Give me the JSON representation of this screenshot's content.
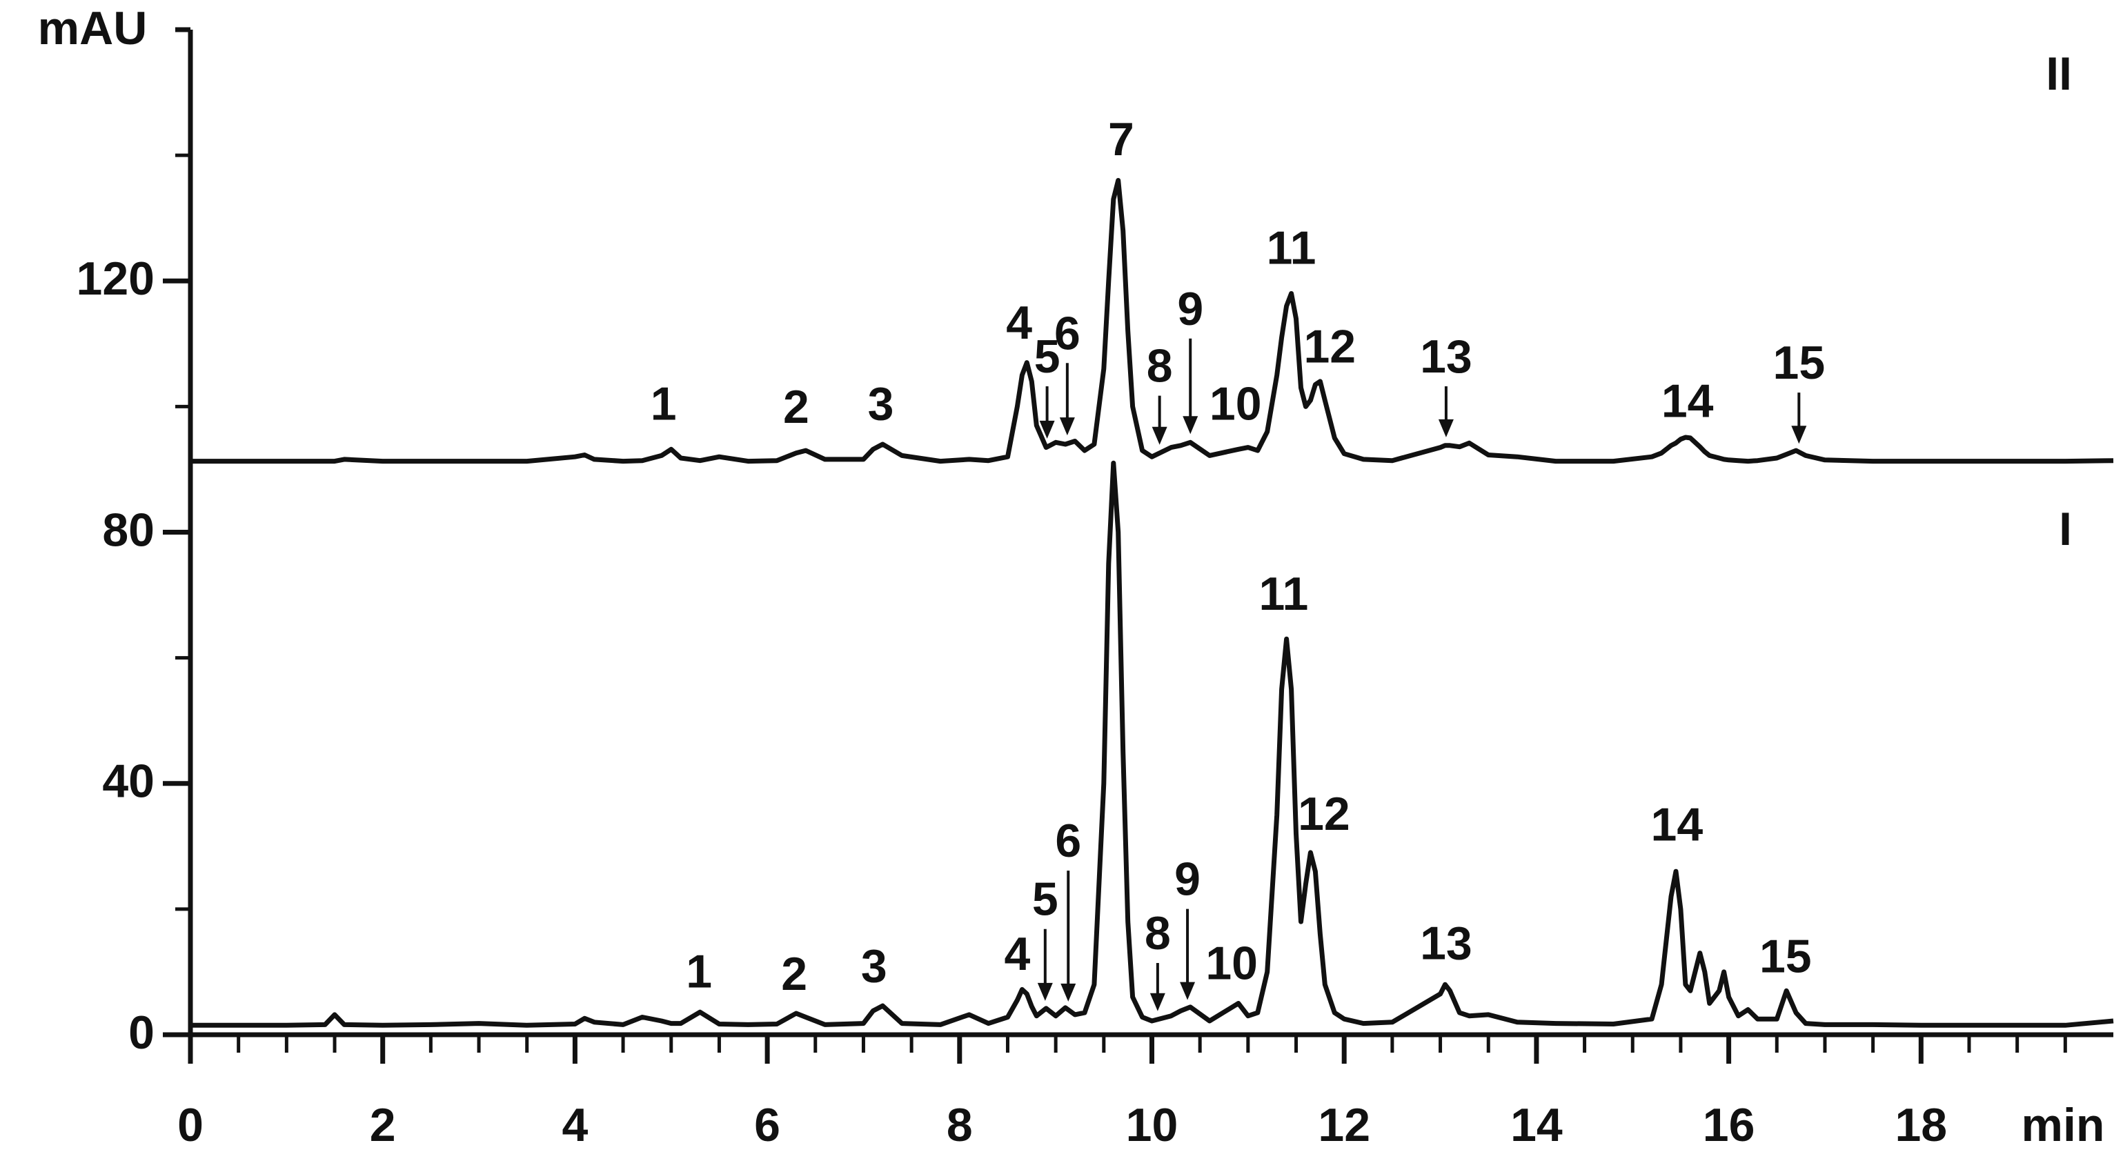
{
  "chart_data": {
    "type": "line",
    "xlabel": "min",
    "ylabel": "mAU",
    "xlim": [
      0,
      20
    ],
    "ylim": [
      0,
      160
    ],
    "xticks": [
      0,
      2,
      4,
      6,
      8,
      10,
      12,
      14,
      16,
      18
    ],
    "yticks": [
      0,
      40,
      80,
      120
    ],
    "color": "#111111",
    "x": [
      0,
      0.5,
      1,
      1.4,
      1.5,
      1.6,
      2,
      2.5,
      3,
      3.5,
      4,
      4.1,
      4.2,
      4.5,
      4.7,
      4.9,
      5.0,
      5.1,
      5.3,
      5.5,
      5.8,
      6.1,
      6.3,
      6.4,
      6.6,
      7.0,
      7.1,
      7.2,
      7.4,
      7.8,
      8.1,
      8.3,
      8.5,
      8.6,
      8.65,
      8.7,
      8.75,
      8.8,
      8.9,
      9.0,
      9.1,
      9.2,
      9.3,
      9.4,
      9.5,
      9.55,
      9.6,
      9.65,
      9.7,
      9.75,
      9.8,
      9.9,
      10.0,
      10.2,
      10.3,
      10.4,
      10.6,
      10.9,
      11.0,
      11.1,
      11.2,
      11.3,
      11.35,
      11.4,
      11.45,
      11.5,
      11.55,
      11.6,
      11.65,
      11.7,
      11.75,
      11.8,
      11.9,
      12.0,
      12.2,
      12.5,
      13.0,
      13.05,
      13.1,
      13.2,
      13.3,
      13.5,
      13.8,
      14.2,
      14.8,
      15.2,
      15.3,
      15.4,
      15.45,
      15.5,
      15.55,
      15.6,
      15.7,
      15.75,
      15.8,
      15.9,
      15.95,
      16.0,
      16.1,
      16.2,
      16.3,
      16.5,
      16.6,
      16.7,
      16.8,
      17.0,
      17.5,
      18,
      18.5,
      19,
      19.5,
      20
    ],
    "series": [
      {
        "name": "II",
        "values": [
          91.3,
          91.3,
          91.3,
          91.3,
          91.3,
          91.6,
          91.3,
          91.3,
          91.3,
          91.3,
          92.0,
          92.3,
          91.6,
          91.3,
          91.4,
          92.2,
          93.2,
          91.8,
          91.4,
          92.0,
          91.3,
          91.4,
          92.6,
          93.0,
          91.6,
          91.6,
          93.2,
          94.0,
          92.2,
          91.3,
          91.6,
          91.4,
          92.0,
          100,
          105,
          107,
          104,
          97,
          93.5,
          94.3,
          94.0,
          94.5,
          93,
          94,
          106,
          120,
          133,
          136,
          128,
          112,
          100,
          93,
          92,
          93.5,
          93.8,
          94.3,
          92.2,
          93.2,
          93.5,
          93,
          96,
          105,
          111,
          116,
          118,
          114,
          103,
          100,
          101,
          103.5,
          104,
          101,
          95,
          92.5,
          91.6,
          91.4,
          93.5,
          93.8,
          93.8,
          93.6,
          94.2,
          92.3,
          92.0,
          91.3,
          91.3,
          92.0,
          92.6,
          93.8,
          94.2,
          94.8,
          95.1,
          95.0,
          93.6,
          92.8,
          92.2,
          91.8,
          91.6,
          91.5,
          91.4,
          91.3,
          91.4,
          91.8,
          92.4,
          93.0,
          92.2,
          91.5,
          91.3,
          91.3,
          91.3,
          91.3,
          91.3,
          91.4
        ],
        "labels": [
          {
            "text": "1",
            "x": 4.92,
            "y": 99.9
          },
          {
            "text": "2",
            "x": 6.3,
            "y": 99.4
          },
          {
            "text": "3",
            "x": 7.18,
            "y": 99.9
          },
          {
            "text": "4",
            "x": 8.62,
            "y": 112.8
          },
          {
            "text": "5",
            "x": 8.91,
            "y": 107.4,
            "arrow": true
          },
          {
            "text": "6",
            "x": 9.12,
            "y": 111.1,
            "arrow": true
          },
          {
            "text": "7",
            "x": 9.68,
            "y": 142
          },
          {
            "text": "8",
            "x": 10.08,
            "y": 105.9,
            "arrow": true
          },
          {
            "text": "9",
            "x": 10.4,
            "y": 115,
            "arrow": true
          },
          {
            "text": "10",
            "x": 10.87,
            "y": 99.9
          },
          {
            "text": "11",
            "x": 11.45,
            "y": 124.7
          },
          {
            "text": "12",
            "x": 11.85,
            "y": 109
          },
          {
            "text": "13",
            "x": 13.06,
            "y": 107.4,
            "arrow": true
          },
          {
            "text": "14",
            "x": 15.57,
            "y": 100.3
          },
          {
            "text": "15",
            "x": 16.73,
            "y": 106.4,
            "arrow": true
          }
        ]
      },
      {
        "name": "I",
        "values": [
          1.5,
          1.5,
          1.5,
          1.6,
          3.2,
          1.6,
          1.5,
          1.6,
          1.8,
          1.5,
          1.7,
          2.6,
          2.0,
          1.6,
          2.8,
          2.2,
          1.8,
          1.8,
          3.6,
          1.7,
          1.6,
          1.7,
          3.4,
          2.8,
          1.6,
          1.8,
          3.8,
          4.6,
          1.8,
          1.6,
          3.2,
          1.8,
          2.8,
          5.5,
          7.2,
          6.5,
          4.5,
          3.0,
          4.2,
          3.0,
          4.3,
          3.2,
          3.5,
          8,
          40,
          75,
          91,
          80,
          45,
          18,
          6,
          2.8,
          2.2,
          3.0,
          3.8,
          4.4,
          2.2,
          5.0,
          3.0,
          3.5,
          10,
          35,
          55,
          63,
          55,
          32,
          18,
          24,
          29,
          26,
          16,
          8,
          3.5,
          2.5,
          1.8,
          2.0,
          6.5,
          8.0,
          7.0,
          3.5,
          3.0,
          3.2,
          2.0,
          1.8,
          1.7,
          2.5,
          8,
          22,
          26,
          20,
          8,
          7,
          13,
          10,
          5,
          7,
          10,
          6,
          3,
          4,
          2.5,
          2.5,
          7,
          3.5,
          1.8,
          1.6,
          1.6,
          1.5,
          1.5,
          1.5,
          1.5,
          2.2
        ],
        "labels": [
          {
            "text": "1",
            "x": 5.29,
            "y": 9.5
          },
          {
            "text": "2",
            "x": 6.28,
            "y": 9.1
          },
          {
            "text": "3",
            "x": 7.11,
            "y": 10.4
          },
          {
            "text": "4",
            "x": 8.6,
            "y": 12.3
          },
          {
            "text": "5",
            "x": 8.89,
            "y": 21,
            "arrow": true
          },
          {
            "text": "6",
            "x": 9.13,
            "y": 30.3,
            "arrow": true
          },
          {
            "text": "8",
            "x": 10.06,
            "y": 15.6,
            "arrow": true
          },
          {
            "text": "9",
            "x": 10.37,
            "y": 24.2,
            "arrow": true
          },
          {
            "text": "10",
            "x": 10.83,
            "y": 10.8
          },
          {
            "text": "11",
            "x": 11.37,
            "y": 69.6
          },
          {
            "text": "12",
            "x": 11.79,
            "y": 34.6
          },
          {
            "text": "13",
            "x": 13.06,
            "y": 14
          },
          {
            "text": "14",
            "x": 15.46,
            "y": 32.9
          },
          {
            "text": "15",
            "x": 16.59,
            "y": 11.9
          }
        ]
      }
    ]
  }
}
